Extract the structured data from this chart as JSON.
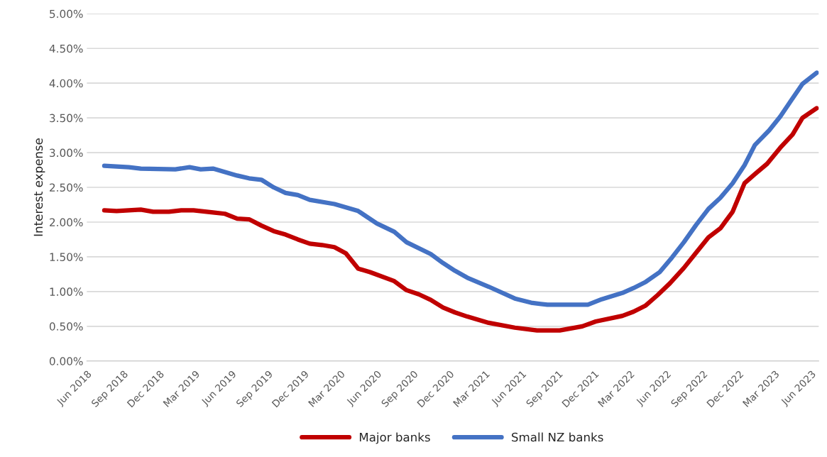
{
  "chart_data": {
    "type": "line",
    "ylabel": "Interest expense",
    "xlim": [
      "2018-06-01",
      "2023-06-20"
    ],
    "xticks": [
      {
        "value": "2018-06-01",
        "label": "Jun 2018"
      },
      {
        "value": "2018-09-01",
        "label": "Sep 2018"
      },
      {
        "value": "2018-12-01",
        "label": "Dec 2018"
      },
      {
        "value": "2019-03-01",
        "label": "Mar 2019"
      },
      {
        "value": "2019-06-01",
        "label": "Jun 2019"
      },
      {
        "value": "2019-09-01",
        "label": "Sep 2019"
      },
      {
        "value": "2019-12-01",
        "label": "Dec 2019"
      },
      {
        "value": "2020-03-01",
        "label": "Mar 2020"
      },
      {
        "value": "2020-06-01",
        "label": "Jun 2020"
      },
      {
        "value": "2020-09-01",
        "label": "Sep 2020"
      },
      {
        "value": "2020-12-01",
        "label": "Dec 2020"
      },
      {
        "value": "2021-03-01",
        "label": "Mar 2021"
      },
      {
        "value": "2021-06-01",
        "label": "Jun 2021"
      },
      {
        "value": "2021-09-01",
        "label": "Sep 2021"
      },
      {
        "value": "2021-12-01",
        "label": "Dec 2021"
      },
      {
        "value": "2022-03-01",
        "label": "Mar 2022"
      },
      {
        "value": "2022-06-01",
        "label": "Jun 2022"
      },
      {
        "value": "2022-09-01",
        "label": "Sep 2022"
      },
      {
        "value": "2022-12-01",
        "label": "Dec 2022"
      },
      {
        "value": "2023-03-01",
        "label": "Mar 2023"
      },
      {
        "value": "2023-06-01",
        "label": "Jun 2023"
      }
    ],
    "ylim": [
      0,
      5
    ],
    "yticks": [
      {
        "value": 0,
        "label": "0.00%"
      },
      {
        "value": 0.5,
        "label": "0.50%"
      },
      {
        "value": 1,
        "label": "1.00%"
      },
      {
        "value": 1.5,
        "label": "1.50%"
      },
      {
        "value": 2,
        "label": "2.00%"
      },
      {
        "value": 2.5,
        "label": "2.50%"
      },
      {
        "value": 3,
        "label": "3.00%"
      },
      {
        "value": 3.5,
        "label": "3.50%"
      },
      {
        "value": 4,
        "label": "4.00%"
      },
      {
        "value": 4.5,
        "label": "4.50%"
      },
      {
        "value": 5,
        "label": "5.00%"
      }
    ],
    "grid": "y",
    "legend": "bottom",
    "marker": "none",
    "line_style": "solid",
    "series": [
      {
        "name": "Major banks",
        "color": "#c00000",
        "x": [
          "2018-07-15",
          "2018-08-15",
          "2018-10-15",
          "2018-11-15",
          "2018-12-25",
          "2019-01-25",
          "2019-02-25",
          "2019-04-15",
          "2019-05-15",
          "2019-06-15",
          "2019-07-15",
          "2019-08-15",
          "2019-09-15",
          "2019-10-15",
          "2019-11-15",
          "2019-12-15",
          "2020-01-15",
          "2020-02-15",
          "2020-03-15",
          "2020-04-15",
          "2020-05-15",
          "2020-07-15",
          "2020-08-15",
          "2020-09-15",
          "2020-10-15",
          "2020-11-15",
          "2020-12-15",
          "2021-01-15",
          "2021-03-10",
          "2021-05-15",
          "2021-07-10",
          "2021-09-05",
          "2021-11-01",
          "2021-12-05",
          "2022-02-10",
          "2022-03-10",
          "2022-04-10",
          "2022-05-10",
          "2022-06-10",
          "2022-07-15",
          "2022-08-15",
          "2022-09-15",
          "2022-10-15",
          "2022-11-15",
          "2022-12-15",
          "2023-01-10",
          "2023-02-10",
          "2023-03-15",
          "2023-04-15",
          "2023-05-10",
          "2023-06-15"
        ],
        "values": [
          2.17,
          2.16,
          2.18,
          2.15,
          2.15,
          2.17,
          2.17,
          2.14,
          2.12,
          2.05,
          2.04,
          1.95,
          1.87,
          1.82,
          1.75,
          1.69,
          1.67,
          1.64,
          1.55,
          1.33,
          1.28,
          1.15,
          1.02,
          0.96,
          0.88,
          0.77,
          0.7,
          0.64,
          0.55,
          0.48,
          0.44,
          0.44,
          0.5,
          0.57,
          0.65,
          0.71,
          0.8,
          0.95,
          1.12,
          1.34,
          1.56,
          1.78,
          1.91,
          2.15,
          2.56,
          2.69,
          2.84,
          3.07,
          3.26,
          3.5,
          3.64
        ]
      },
      {
        "name": "Small NZ banks",
        "color": "#4472c4",
        "x": [
          "2018-07-15",
          "2018-09-15",
          "2018-10-15",
          "2019-01-10",
          "2019-02-15",
          "2019-03-15",
          "2019-04-15",
          "2019-06-15",
          "2019-07-15",
          "2019-08-15",
          "2019-09-15",
          "2019-10-15",
          "2019-11-15",
          "2019-12-15",
          "2020-02-15",
          "2020-04-15",
          "2020-06-01",
          "2020-07-15",
          "2020-08-15",
          "2020-10-15",
          "2020-11-15",
          "2020-12-15",
          "2021-01-15",
          "2021-03-10",
          "2021-05-15",
          "2021-06-25",
          "2021-08-05",
          "2021-10-01",
          "2021-11-15",
          "2021-12-20",
          "2022-02-10",
          "2022-03-10",
          "2022-04-10",
          "2022-05-15",
          "2022-06-15",
          "2022-07-15",
          "2022-08-15",
          "2022-09-15",
          "2022-10-15",
          "2022-11-15",
          "2022-12-15",
          "2023-01-10",
          "2023-02-15",
          "2023-03-15",
          "2023-04-10",
          "2023-05-10",
          "2023-06-15"
        ],
        "values": [
          2.81,
          2.79,
          2.77,
          2.76,
          2.79,
          2.76,
          2.77,
          2.67,
          2.63,
          2.61,
          2.5,
          2.42,
          2.39,
          2.32,
          2.26,
          2.16,
          1.98,
          1.86,
          1.71,
          1.54,
          1.41,
          1.3,
          1.2,
          1.07,
          0.9,
          0.84,
          0.81,
          0.81,
          0.81,
          0.89,
          0.98,
          1.05,
          1.14,
          1.28,
          1.49,
          1.71,
          1.96,
          2.19,
          2.35,
          2.56,
          2.82,
          3.11,
          3.32,
          3.52,
          3.74,
          3.99,
          4.15
        ]
      }
    ]
  }
}
